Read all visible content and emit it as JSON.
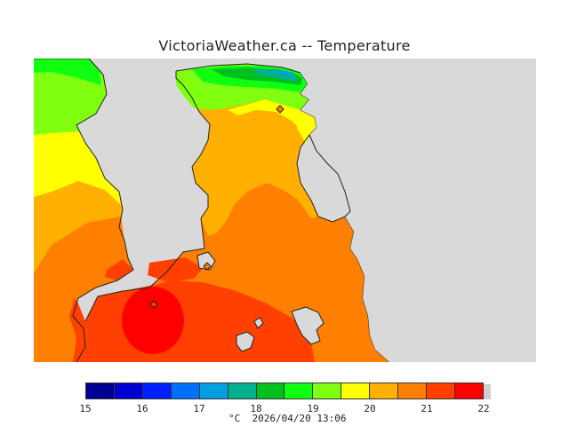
{
  "title": "VictoriaWeather.ca -- Temperature",
  "map": {
    "land_color": "#d9d9d9",
    "coast_color": "#222222",
    "stations": [
      {
        "name": "station-marker-north"
      },
      {
        "name": "station-marker-mid"
      },
      {
        "name": "station-marker-south"
      }
    ]
  },
  "legend": {
    "unit": "°C",
    "ticks": [
      "15",
      "16",
      "17",
      "18",
      "19",
      "20",
      "21",
      "22"
    ],
    "colors": [
      "#000090",
      "#0000d0",
      "#0020ff",
      "#0070ff",
      "#00a0e0",
      "#00b090",
      "#00c020",
      "#10ff10",
      "#80ff10",
      "#ffff00",
      "#ffb000",
      "#ff7f00",
      "#ff4000",
      "#ff0000"
    ]
  },
  "timestamp": "2026/04/20 13:06"
}
